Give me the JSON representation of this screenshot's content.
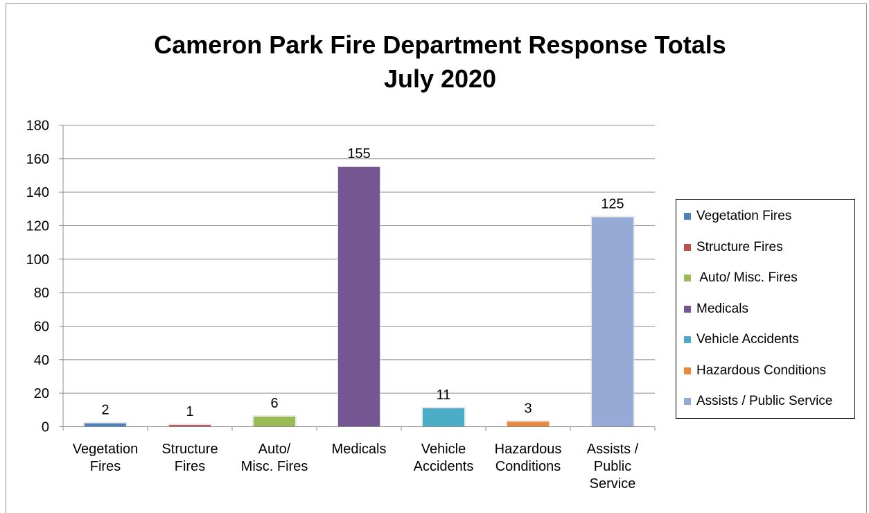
{
  "chart_data": {
    "type": "bar",
    "title": [
      "Cameron Park Fire Department Response Totals",
      "July 2020"
    ],
    "xlabel": "",
    "ylabel": "",
    "ylim": [
      0,
      180
    ],
    "yticks": [
      0,
      20,
      40,
      60,
      80,
      100,
      120,
      140,
      160,
      180
    ],
    "grid": true,
    "legend_position": "right",
    "categories": [
      [
        "Vegetation",
        "Fires"
      ],
      [
        "Structure",
        "Fires"
      ],
      [
        "Auto/",
        "Misc. Fires"
      ],
      [
        "Medicals"
      ],
      [
        "Vehicle",
        "Accidents"
      ],
      [
        "Hazardous",
        "Conditions"
      ],
      [
        "Assists /",
        "Public",
        "Service"
      ]
    ],
    "series": [
      {
        "name": "Vegetation Fires",
        "color": "#4f81bd",
        "values": [
          2,
          null,
          null,
          null,
          null,
          null,
          null
        ]
      },
      {
        "name": "Structure Fires",
        "color": "#c0504d",
        "values": [
          null,
          1,
          null,
          null,
          null,
          null,
          null
        ]
      },
      {
        "name": " Auto/ Misc. Fires",
        "color": "#9bbb59",
        "values": [
          null,
          null,
          6,
          null,
          null,
          null,
          null
        ]
      },
      {
        "name": "Medicals",
        "color": "#755592",
        "values": [
          null,
          null,
          null,
          155,
          null,
          null,
          null
        ]
      },
      {
        "name": "Vehicle Accidents",
        "color": "#4bacc6",
        "values": [
          null,
          null,
          null,
          null,
          11,
          null,
          null
        ]
      },
      {
        "name": "Hazardous Conditions",
        "color": "#e8893f",
        "values": [
          null,
          null,
          null,
          null,
          null,
          3,
          null
        ]
      },
      {
        "name": "Assists / Public Service",
        "color": "#95abd6",
        "values": [
          null,
          null,
          null,
          null,
          null,
          null,
          125
        ]
      }
    ],
    "values": [
      2,
      1,
      6,
      155,
      11,
      3,
      125
    ],
    "data_labels": [
      "2",
      "1",
      "6",
      "155",
      "11",
      "3",
      "125"
    ]
  }
}
